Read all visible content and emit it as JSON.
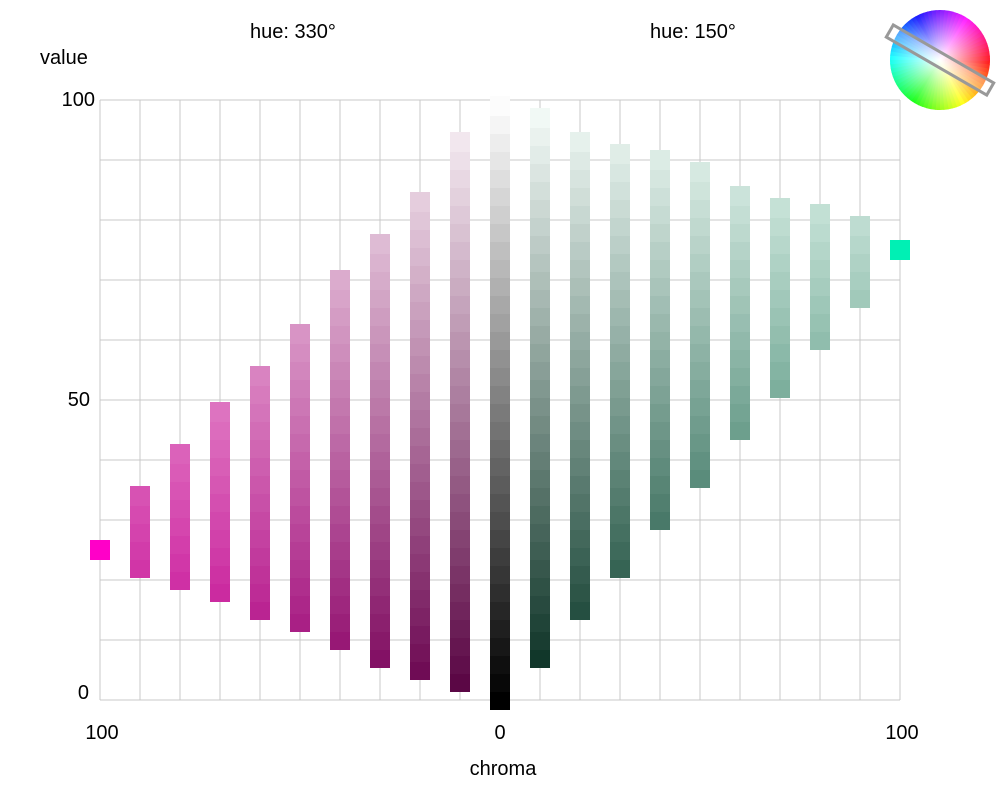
{
  "chart_data": {
    "type": "scatter",
    "title_left": "hue: 330°",
    "title_right": "hue: 150°",
    "ylabel": "value",
    "xlabel": "chroma",
    "y_ticks": [
      "100",
      "50",
      "0"
    ],
    "x_ticks": [
      "100",
      "0",
      "100"
    ],
    "xlim": [
      -100,
      100
    ],
    "ylim": [
      0,
      100
    ],
    "grid": true,
    "inset": "hue-wheel-top-right",
    "hue_wheel_selected": [
      330,
      150
    ],
    "grid_x_step": 10,
    "grid_y_step": 10,
    "series": [
      {
        "hue": 330,
        "side": "left",
        "color_light": "#fdf0f7",
        "color_dark": "#c40090",
        "color_max": "#ff00c8",
        "columns": [
          {
            "chroma": 10,
            "v_min": 3,
            "v_max": 93
          },
          {
            "chroma": 20,
            "v_min": 5,
            "v_max": 85
          },
          {
            "chroma": 30,
            "v_min": 7,
            "v_max": 78
          },
          {
            "chroma": 40,
            "v_min": 10,
            "v_max": 71
          },
          {
            "chroma": 50,
            "v_min": 13,
            "v_max": 63
          },
          {
            "chroma": 60,
            "v_min": 15,
            "v_max": 56
          },
          {
            "chroma": 70,
            "v_min": 18,
            "v_max": 49
          },
          {
            "chroma": 80,
            "v_min": 20,
            "v_max": 41
          },
          {
            "chroma": 90,
            "v_min": 22,
            "v_max": 34
          },
          {
            "chroma": 100,
            "v_min": 25,
            "v_max": 25
          }
        ]
      },
      {
        "hue": 150,
        "side": "right",
        "color_light": "#f0fff8",
        "color_dark": "#005a3c",
        "color_max": "#00f0b4",
        "columns": [
          {
            "chroma": 10,
            "v_min": 7,
            "v_max": 98
          },
          {
            "chroma": 20,
            "v_min": 15,
            "v_max": 95
          },
          {
            "chroma": 30,
            "v_min": 22,
            "v_max": 93
          },
          {
            "chroma": 40,
            "v_min": 30,
            "v_max": 90
          },
          {
            "chroma": 50,
            "v_min": 37,
            "v_max": 88
          },
          {
            "chroma": 60,
            "v_min": 45,
            "v_max": 85
          },
          {
            "chroma": 70,
            "v_min": 52,
            "v_max": 84
          },
          {
            "chroma": 80,
            "v_min": 60,
            "v_max": 82
          },
          {
            "chroma": 90,
            "v_min": 67,
            "v_max": 79
          },
          {
            "chroma": 100,
            "v_min": 75,
            "v_max": 75
          }
        ]
      },
      {
        "hue": null,
        "side": "center",
        "color_light": "#ffffff",
        "color_dark": "#000000",
        "columns": [
          {
            "chroma": 0,
            "v_min": 0,
            "v_max": 100
          }
        ]
      }
    ]
  }
}
